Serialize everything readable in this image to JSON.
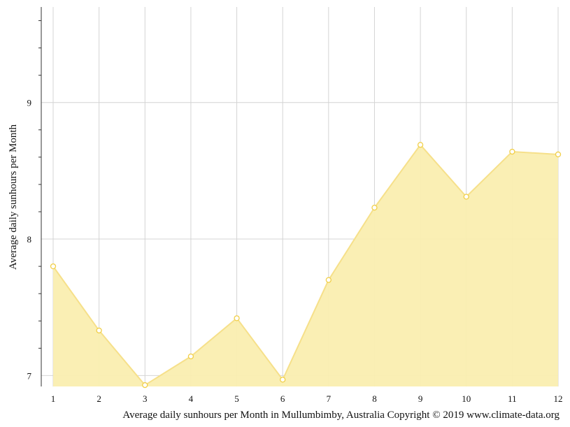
{
  "chart_data": {
    "type": "area",
    "x": [
      1,
      2,
      3,
      4,
      5,
      6,
      7,
      8,
      9,
      10,
      11,
      12
    ],
    "series": [
      {
        "values": [
          7.8,
          7.33,
          6.93,
          7.14,
          7.42,
          6.97,
          7.7,
          8.23,
          8.69,
          8.31,
          8.64,
          8.62
        ]
      }
    ],
    "ylabel": "Average daily sunhours per Month",
    "caption": "Average daily sunhours per Month in Mullumbimby, Australia Copyright © 2019 www.climate-data.org",
    "ylim": [
      6.92,
      9.7
    ],
    "yticks": [
      7,
      8,
      9
    ],
    "xticks": [
      1,
      2,
      3,
      4,
      5,
      6,
      7,
      8,
      9,
      10,
      11,
      12
    ],
    "grid": true,
    "colors": {
      "fill": "#faeeb0",
      "line": "#f6e08a",
      "marker": "#f1cf48",
      "grid": "#d4d4d4",
      "axis": "#333333"
    }
  }
}
